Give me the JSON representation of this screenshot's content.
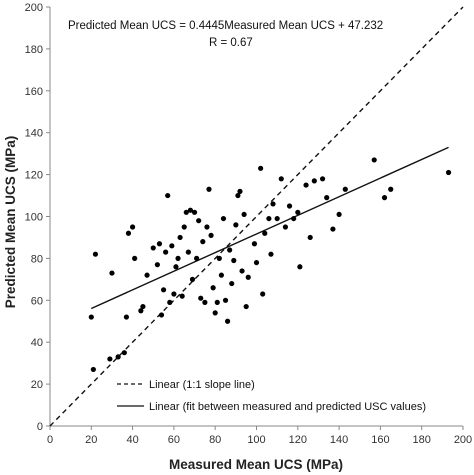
{
  "chart_data": {
    "type": "scatter",
    "xlabel": "Measured Mean UCS (MPa)",
    "ylabel": "Predicted Mean UCS (MPa)",
    "xlim": [
      0,
      200
    ],
    "ylim": [
      0,
      200
    ],
    "xticks": [
      0,
      20,
      40,
      60,
      80,
      100,
      120,
      140,
      160,
      180,
      200
    ],
    "yticks": [
      0,
      20,
      40,
      60,
      80,
      100,
      120,
      140,
      160,
      180,
      200
    ],
    "grid": false,
    "annotations": [
      "Predicted Mean UCS = 0.4445Measured Mean UCS + 47.232",
      "R = 0.67"
    ],
    "legend_position": "bottom-right",
    "series": [
      {
        "kind": "points",
        "x": [
          20,
          22,
          21,
          30,
          29,
          33,
          36,
          37,
          38,
          40,
          41,
          44,
          45,
          47,
          50,
          52,
          53,
          54,
          55,
          56,
          57,
          58,
          59,
          60,
          61,
          62,
          63,
          64,
          65,
          66,
          67,
          68,
          69,
          70,
          71,
          72,
          73,
          74,
          75,
          76,
          77,
          78,
          79,
          80,
          81,
          82,
          83,
          84,
          85,
          86,
          87,
          88,
          89,
          90,
          91,
          92,
          93,
          94,
          95,
          96,
          99,
          100,
          102,
          103,
          104,
          106,
          107,
          108,
          110,
          112,
          114,
          116,
          118,
          120,
          121,
          124,
          126,
          128,
          132,
          134,
          137,
          140,
          143,
          157,
          162,
          165,
          193
        ],
        "y": [
          52,
          82,
          27,
          73,
          32,
          33,
          35,
          52,
          92,
          95,
          80,
          55,
          57,
          72,
          85,
          77,
          87,
          53,
          65,
          83,
          110,
          59,
          86,
          63,
          76,
          80,
          90,
          62,
          95,
          102,
          83,
          103,
          70,
          102,
          80,
          98,
          61,
          88,
          59,
          95,
          113,
          91,
          66,
          54,
          59,
          80,
          72,
          99,
          60,
          50,
          84,
          68,
          79,
          96,
          110,
          112,
          74,
          101,
          57,
          71,
          87,
          78,
          123,
          63,
          92,
          99,
          82,
          106,
          99,
          118,
          95,
          105,
          99,
          102,
          76,
          115,
          90,
          117,
          118,
          109,
          94,
          101,
          113,
          127,
          109,
          113,
          121
        ]
      },
      {
        "kind": "line",
        "name": "Linear (1:1 slope line)",
        "style": "dashed",
        "x": [
          0,
          200
        ],
        "y": [
          0,
          200
        ]
      },
      {
        "kind": "line",
        "name": "Linear (fit between measured and predicted USC values)",
        "style": "solid",
        "x": [
          20,
          193
        ],
        "y": [
          56.1,
          133.0
        ]
      }
    ]
  }
}
